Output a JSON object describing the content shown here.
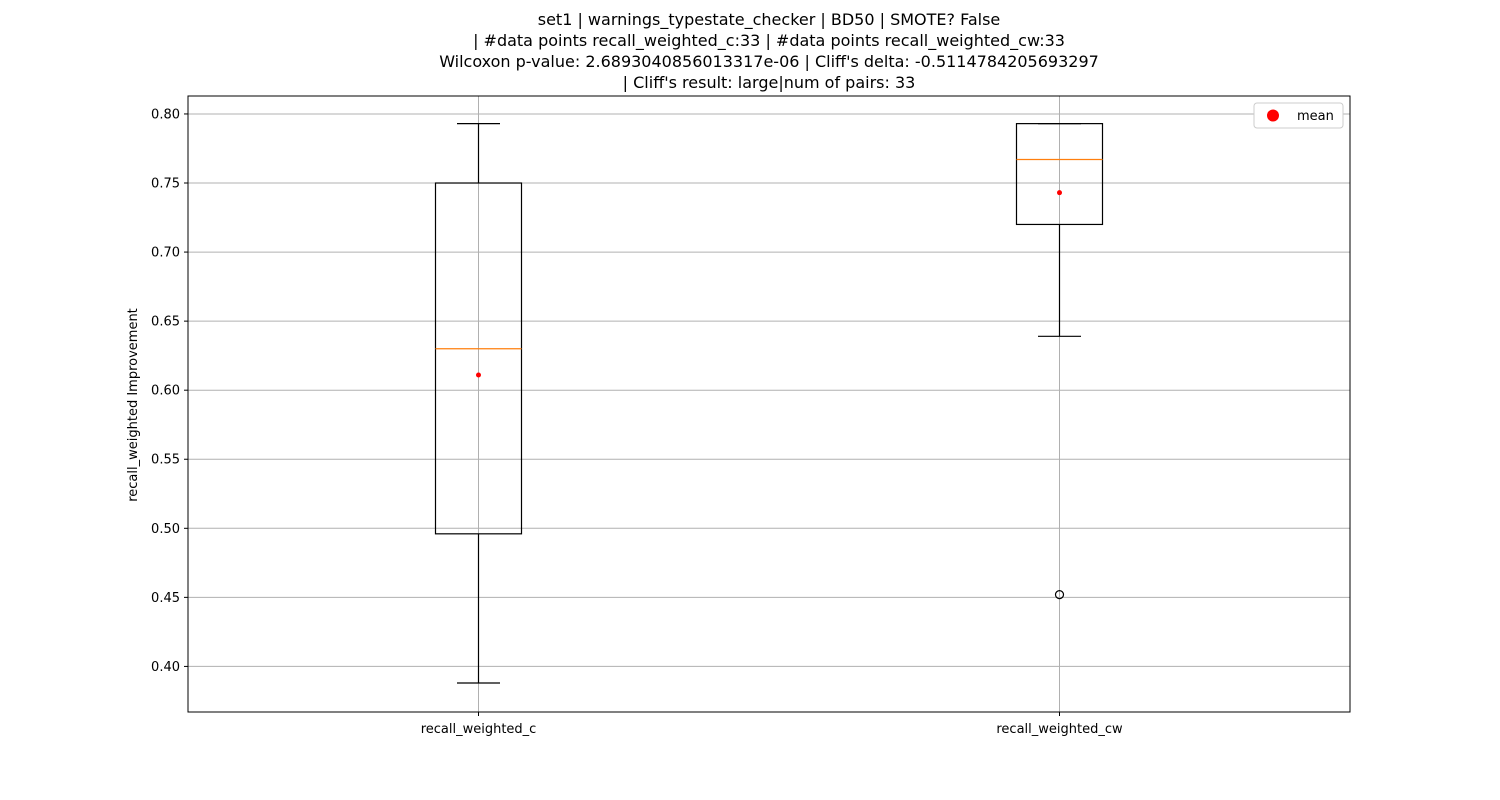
{
  "chart_data": {
    "type": "boxplot",
    "title_lines": [
      "set1 | warnings_typestate_checker | BD50 | SMOTE? False",
      "| #data points recall_weighted_c:33 | #data points recall_weighted_cw:33",
      "Wilcoxon p-value: 2.6893040856013317e-06 | Cliff's delta: -0.5114784205693297",
      "| Cliff's result: large|num of pairs: 33"
    ],
    "ylabel": "recall_weighted Improvement",
    "xlabel": "",
    "ylim": [
      0.367,
      0.813
    ],
    "yticks": [
      0.4,
      0.45,
      0.5,
      0.55,
      0.6,
      0.65,
      0.7,
      0.75,
      0.8
    ],
    "ytick_labels": [
      "0.40",
      "0.45",
      "0.50",
      "0.55",
      "0.60",
      "0.65",
      "0.70",
      "0.75",
      "0.80"
    ],
    "grid": true,
    "legend": {
      "placement": "top-right",
      "entries": [
        {
          "label": "mean",
          "color": "#ff0000"
        }
      ]
    },
    "colors": {
      "box": "#000000",
      "median": "#ff7f0e",
      "mean": "#ff0000",
      "grid": "#b0b0b0"
    },
    "categories": [
      "recall_weighted_c",
      "recall_weighted_cw"
    ],
    "boxes": [
      {
        "name": "recall_weighted_c",
        "whisker_low": 0.388,
        "q1": 0.496,
        "median": 0.63,
        "q3": 0.75,
        "whisker_high": 0.793,
        "mean": 0.611,
        "outliers": []
      },
      {
        "name": "recall_weighted_cw",
        "whisker_low": 0.639,
        "q1": 0.72,
        "median": 0.767,
        "q3": 0.793,
        "whisker_high": 0.793,
        "mean": 0.743,
        "outliers": [
          0.452
        ]
      }
    ]
  }
}
